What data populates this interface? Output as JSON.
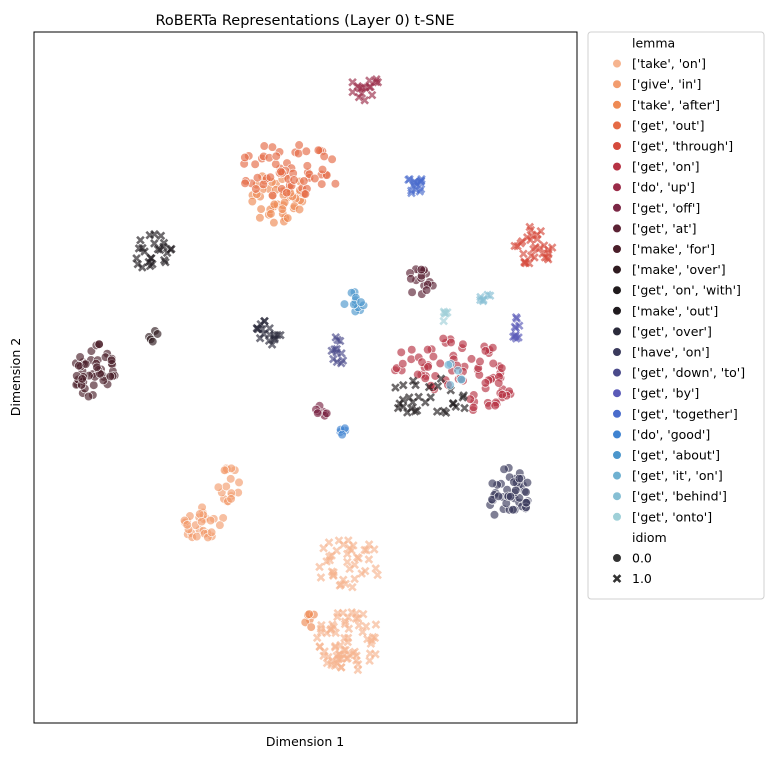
{
  "chart_data": {
    "type": "scatter",
    "title": "RoBERTa Representations (Layer 0) t-SNE",
    "xlabel": "Dimension 1",
    "ylabel": "Dimension 2",
    "xlim": [
      0,
      100
    ],
    "ylim": [
      0,
      100
    ],
    "xticks": [],
    "yticks": [],
    "grid": false,
    "legend_placement": "outside right",
    "legend": {
      "hue_title": "lemma",
      "style_title": "idiom",
      "style_entries": [
        {
          "label": "0.0",
          "marker": "circle"
        },
        {
          "label": "1.0",
          "marker": "x"
        }
      ]
    },
    "series": [
      {
        "name": "['take', 'on']",
        "color": "#f6b48f",
        "clusters": [
          {
            "cx": 58,
            "cy": 12,
            "rx": 6,
            "ry": 4.5,
            "n": 70,
            "marker": "x"
          },
          {
            "cx": 58,
            "cy": 23,
            "rx": 6,
            "ry": 4,
            "n": 40,
            "marker": "x"
          }
        ]
      },
      {
        "name": "['give', 'in']",
        "color": "#f29c6e",
        "clusters": [
          {
            "cx": 36,
            "cy": 34.5,
            "rx": 2.2,
            "ry": 2.5,
            "n": 18,
            "marker": "circle"
          },
          {
            "cx": 31,
            "cy": 29,
            "rx": 4,
            "ry": 2.5,
            "n": 30,
            "marker": "circle"
          }
        ]
      },
      {
        "name": "['take', 'after']",
        "color": "#ee8a54",
        "clusters": [
          {
            "cx": 45,
            "cy": 76,
            "rx": 5,
            "ry": 4,
            "n": 50,
            "marker": "circle"
          },
          {
            "cx": 51,
            "cy": 15,
            "rx": 1.2,
            "ry": 1.2,
            "n": 6,
            "marker": "circle"
          }
        ]
      },
      {
        "name": "['get', 'out']",
        "color": "#e56a45",
        "clusters": [
          {
            "cx": 47,
            "cy": 80,
            "rx": 10,
            "ry": 4,
            "n": 60,
            "marker": "circle"
          }
        ]
      },
      {
        "name": "['get', 'through']",
        "color": "#d54a3c",
        "clusters": [
          {
            "cx": 92,
            "cy": 69,
            "rx": 3.5,
            "ry": 3,
            "n": 30,
            "marker": "x"
          }
        ]
      },
      {
        "name": "['get', 'on']",
        "color": "#b73244",
        "clusters": [
          {
            "cx": 77,
            "cy": 52,
            "rx": 11,
            "ry": 4,
            "n": 60,
            "marker": "circle"
          },
          {
            "cx": 84,
            "cy": 47,
            "rx": 4,
            "ry": 3,
            "n": 20,
            "marker": "circle"
          }
        ]
      },
      {
        "name": "['do', 'up']",
        "color": "#9a2b48",
        "clusters": [
          {
            "cx": 61,
            "cy": 92,
            "rx": 3,
            "ry": 2,
            "n": 16,
            "marker": "x"
          }
        ]
      },
      {
        "name": "['get', 'off']",
        "color": "#7b2745",
        "clusters": [
          {
            "cx": 53,
            "cy": 45,
            "rx": 1.5,
            "ry": 1,
            "n": 8,
            "marker": "circle"
          }
        ]
      },
      {
        "name": "['get', 'at']",
        "color": "#5b2234",
        "clusters": [
          {
            "cx": 71,
            "cy": 64,
            "rx": 3,
            "ry": 2,
            "n": 18,
            "marker": "circle"
          }
        ]
      },
      {
        "name": "['make', 'for']",
        "color": "#4a1e2a",
        "clusters": [
          {
            "cx": 11,
            "cy": 51,
            "rx": 4,
            "ry": 4,
            "n": 50,
            "marker": "circle"
          }
        ]
      },
      {
        "name": "['make', 'over']",
        "color": "#2f1b20",
        "clusters": [
          {
            "cx": 22,
            "cy": 56,
            "rx": 1,
            "ry": 1,
            "n": 5,
            "marker": "circle"
          }
        ]
      },
      {
        "name": "['get', 'on', 'with']",
        "color": "#1f1a1c",
        "clusters": [
          {
            "cx": 73,
            "cy": 47,
            "rx": 8,
            "ry": 3,
            "n": 30,
            "marker": "x"
          }
        ]
      },
      {
        "name": "['make', 'out']",
        "color": "#1f1a1e",
        "clusters": [
          {
            "cx": 22,
            "cy": 68,
            "rx": 3.5,
            "ry": 3,
            "n": 25,
            "marker": "x"
          }
        ]
      },
      {
        "name": "['get', 'over']",
        "color": "#2a2a3a",
        "clusters": [
          {
            "cx": 43,
            "cy": 56.5,
            "rx": 2.5,
            "ry": 2,
            "n": 18,
            "marker": "x"
          }
        ]
      },
      {
        "name": "['have', 'on']",
        "color": "#3a3a5c",
        "clusters": [
          {
            "cx": 87.5,
            "cy": 33,
            "rx": 4,
            "ry": 4,
            "n": 45,
            "marker": "circle"
          }
        ]
      },
      {
        "name": "['get', 'down', 'to']",
        "color": "#4a4a8a",
        "clusters": [
          {
            "cx": 56,
            "cy": 54,
            "rx": 1.4,
            "ry": 2.2,
            "n": 12,
            "marker": "x"
          }
        ]
      },
      {
        "name": "['get', 'by']",
        "color": "#5a5ab8",
        "clusters": [
          {
            "cx": 88.5,
            "cy": 57,
            "rx": 1,
            "ry": 2.5,
            "n": 10,
            "marker": "x"
          }
        ]
      },
      {
        "name": "['get', 'together']",
        "color": "#4a6ccc",
        "clusters": [
          {
            "cx": 70,
            "cy": 78,
            "rx": 1.5,
            "ry": 2,
            "n": 15,
            "marker": "x"
          }
        ]
      },
      {
        "name": "['do', 'good']",
        "color": "#3f83d1",
        "clusters": [
          {
            "cx": 57,
            "cy": 42,
            "rx": 1,
            "ry": 1,
            "n": 5,
            "marker": "circle"
          }
        ]
      },
      {
        "name": "['get', 'about']",
        "color": "#4b96cc",
        "clusters": [
          {
            "cx": 59,
            "cy": 61,
            "rx": 2,
            "ry": 1.5,
            "n": 12,
            "marker": "circle"
          }
        ]
      },
      {
        "name": "['get', 'it', 'on']",
        "color": "#6fb1d1",
        "clusters": [
          {
            "cx": 77,
            "cy": 50,
            "rx": 2,
            "ry": 2,
            "n": 6,
            "marker": "circle"
          }
        ]
      },
      {
        "name": "['get', 'behind']",
        "color": "#86bfd4",
        "clusters": [
          {
            "cx": 83,
            "cy": 61.5,
            "rx": 1.5,
            "ry": 0.8,
            "n": 6,
            "marker": "x"
          }
        ]
      },
      {
        "name": "['get', 'onto']",
        "color": "#9fd0d8",
        "clusters": [
          {
            "cx": 76,
            "cy": 59,
            "rx": 0.8,
            "ry": 1.2,
            "n": 5,
            "marker": "x"
          }
        ]
      }
    ]
  }
}
